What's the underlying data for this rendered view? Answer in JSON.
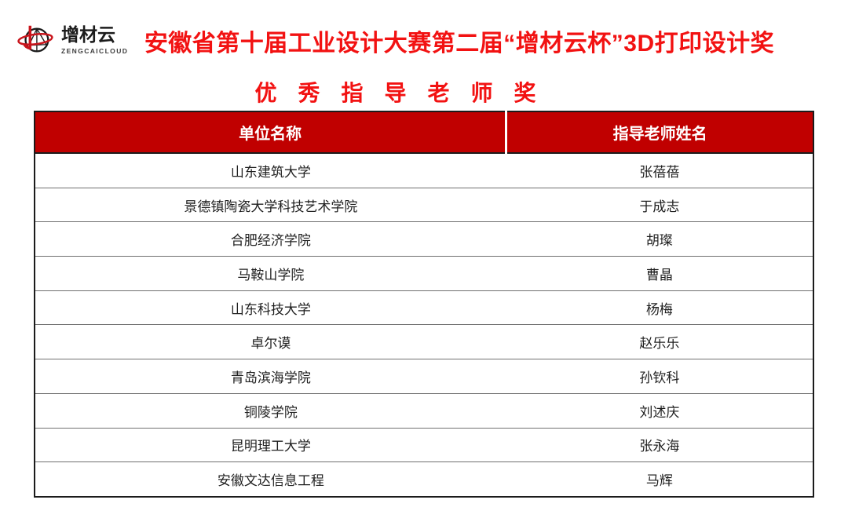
{
  "logo": {
    "name": "增材云",
    "subtitle": "ZENGCAICLOUD"
  },
  "title": {
    "line1": "安徽省第十届工业设计大赛第二届“增材云杯”3D打印设计奖",
    "line2": "优秀指导老师奖"
  },
  "colors": {
    "title_red": "#f21212",
    "table_header_bg": "#c00000",
    "table_header_text": "#ffffff",
    "logo_red": "#c9151c",
    "logo_black": "#1a1a1a",
    "body_text": "#1f1f1f"
  },
  "table": {
    "columns": [
      "单位名称",
      "指导老师姓名"
    ],
    "rows": [
      {
        "unit": "山东建筑大学",
        "teacher": "张蓓蓓"
      },
      {
        "unit": "景德镇陶瓷大学科技艺术学院",
        "teacher": "于成志"
      },
      {
        "unit": "合肥经济学院",
        "teacher": "胡璨"
      },
      {
        "unit": "马鞍山学院",
        "teacher": "曹晶"
      },
      {
        "unit": "山东科技大学",
        "teacher": "杨梅"
      },
      {
        "unit": "卓尔谟",
        "teacher": "赵乐乐"
      },
      {
        "unit": "青岛滨海学院",
        "teacher": "孙钦科"
      },
      {
        "unit": "铜陵学院",
        "teacher": "刘述庆"
      },
      {
        "unit": "昆明理工大学",
        "teacher": "张永海"
      },
      {
        "unit": "安徽文达信息工程",
        "teacher": "马辉"
      }
    ]
  }
}
